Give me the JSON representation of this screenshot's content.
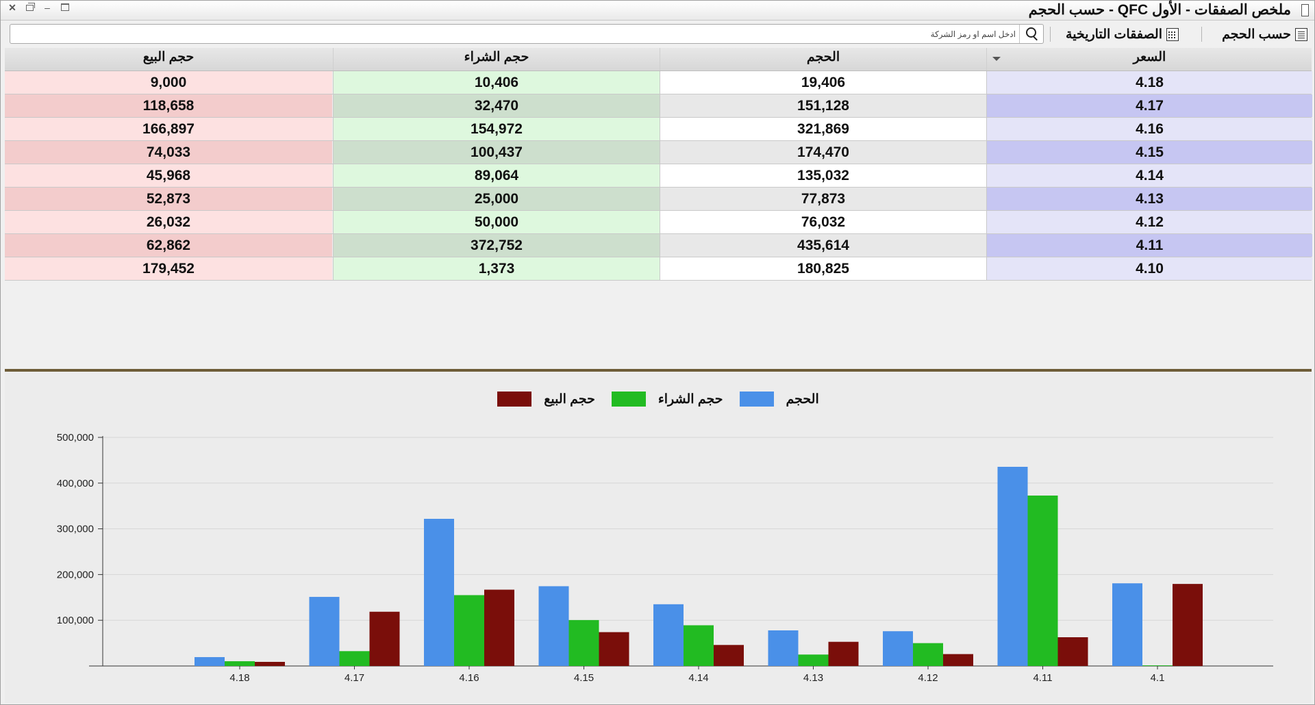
{
  "window": {
    "title": "ملخص الصفقات - الأول QFC - حسب الحجم",
    "controls": {
      "close": "✕",
      "minimize": "–"
    }
  },
  "toolbar": {
    "by_volume_label": "حسب الحجم",
    "historical_trades_label": "الصفقات التاريخية",
    "search_placeholder": "ادخل اسم او رمز الشركة",
    "search_value": ""
  },
  "table": {
    "columns": [
      "حجم البيع",
      "حجم الشراء",
      "الحجم",
      "السعر"
    ],
    "rows": [
      {
        "sell": "9,000",
        "buy": "10,406",
        "volume": "19,406",
        "price": "4.18"
      },
      {
        "sell": "118,658",
        "buy": "32,470",
        "volume": "151,128",
        "price": "4.17"
      },
      {
        "sell": "166,897",
        "buy": "154,972",
        "volume": "321,869",
        "price": "4.16"
      },
      {
        "sell": "74,033",
        "buy": "100,437",
        "volume": "174,470",
        "price": "4.15"
      },
      {
        "sell": "45,968",
        "buy": "89,064",
        "volume": "135,032",
        "price": "4.14"
      },
      {
        "sell": "52,873",
        "buy": "25,000",
        "volume": "77,873",
        "price": "4.13"
      },
      {
        "sell": "26,032",
        "buy": "50,000",
        "volume": "76,032",
        "price": "4.12"
      },
      {
        "sell": "62,862",
        "buy": "372,752",
        "volume": "435,614",
        "price": "4.11"
      },
      {
        "sell": "179,452",
        "buy": "1,373",
        "volume": "180,825",
        "price": "4.10"
      }
    ]
  },
  "colors": {
    "volume": "#4a90e8",
    "buy": "#22bb22",
    "sell": "#7a0e0a"
  },
  "chart_data": {
    "type": "bar",
    "categories": [
      "4.18",
      "4.17",
      "4.16",
      "4.15",
      "4.14",
      "4.13",
      "4.12",
      "4.11",
      "4.1"
    ],
    "series": [
      {
        "name": "الحجم",
        "color": "#4a90e8",
        "values": [
          19406,
          151128,
          321869,
          174470,
          135032,
          77873,
          76032,
          435614,
          180825
        ]
      },
      {
        "name": "حجم الشراء",
        "color": "#22bb22",
        "values": [
          10406,
          32470,
          154972,
          100437,
          89064,
          25000,
          50000,
          372752,
          1373
        ]
      },
      {
        "name": "حجم البيع",
        "color": "#7a0e0a",
        "values": [
          9000,
          118658,
          166897,
          74033,
          45968,
          52873,
          26032,
          62862,
          179452
        ]
      }
    ],
    "yticks": [
      "100,000",
      "200,000",
      "300,000",
      "400,000",
      "500,000"
    ],
    "ylim": [
      0,
      500000
    ],
    "grid": true,
    "legend_position": "top-center"
  }
}
